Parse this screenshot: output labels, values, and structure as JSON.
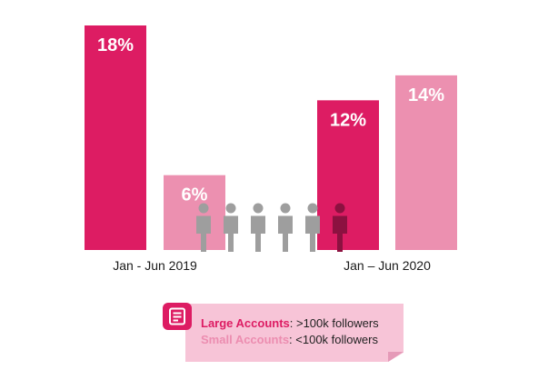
{
  "colors": {
    "large_accounts": "#dd1c63",
    "small_accounts": "#ec90b0",
    "person_gray": "#9e9e9e",
    "person_highlight": "#8c1140",
    "legend_background": "#f7c4d7"
  },
  "chart_data": {
    "type": "bar",
    "title": "",
    "xlabel": "",
    "ylabel": "",
    "ylim": [
      0,
      18
    ],
    "categories": [
      "Jan - Jun 2019",
      "Jan – Jun 2020"
    ],
    "series": [
      {
        "name": "Large Accounts",
        "values": [
          18,
          12
        ],
        "labels": [
          "18%",
          "12%"
        ]
      },
      {
        "name": "Small Accounts",
        "values": [
          6,
          14
        ],
        "labels": [
          "6%",
          "14%"
        ]
      }
    ],
    "annotation": {
      "people_total": 6,
      "people_highlighted": 1
    }
  },
  "legend": {
    "icon": "document-icon",
    "items": [
      {
        "key": "Large Accounts",
        "desc": ": >100k followers"
      },
      {
        "key": "Small Accounts",
        "desc": ": <100k followers"
      }
    ]
  }
}
